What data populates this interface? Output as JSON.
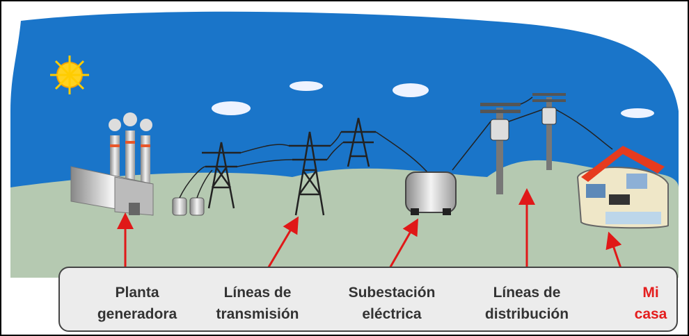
{
  "labels": [
    {
      "line1": "Planta",
      "line2": "generadora"
    },
    {
      "line1": "Líneas de",
      "line2": "transmisión"
    },
    {
      "line1": "Subestación",
      "line2": "eléctrica"
    },
    {
      "line1": "Líneas de",
      "line2": "distribución"
    },
    {
      "line1": "Mi",
      "line2": "casa"
    }
  ]
}
